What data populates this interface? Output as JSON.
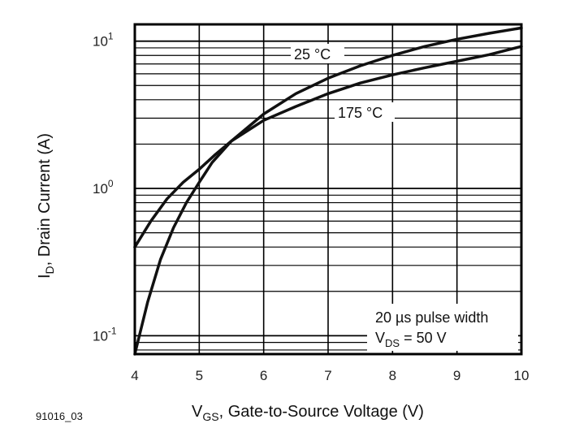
{
  "figure_id": "91016_03",
  "chart_data": {
    "type": "line",
    "x_axis": {
      "label_main": "V",
      "label_sub": "GS",
      "label_rest": ", Gate-to-Source Voltage (V)",
      "range": [
        4,
        10
      ],
      "ticks": [
        4,
        5,
        6,
        7,
        8,
        9,
        10
      ],
      "tick_labels": [
        "4",
        "5",
        "6",
        "7",
        "8",
        "9",
        "10"
      ]
    },
    "y_axis": {
      "label_main": "I",
      "label_sub": "D",
      "label_rest": ", Drain Current (A)",
      "scale": "log",
      "range": [
        0.075,
        13
      ],
      "tick_labels": [
        {
          "value": 10,
          "base": "10",
          "exp": "1"
        },
        {
          "value": 1,
          "base": "10",
          "exp": "0"
        },
        {
          "value": 0.1,
          "base": "10",
          "exp": "-1"
        }
      ]
    },
    "grid": true,
    "series": [
      {
        "name": "25 °C",
        "x": [
          4.0,
          4.2,
          4.4,
          4.6,
          4.8,
          5.0,
          5.2,
          5.5,
          6.0,
          6.5,
          7.0,
          7.5,
          8.0,
          8.5,
          9.0,
          9.5,
          10.0
        ],
        "y": [
          0.075,
          0.17,
          0.33,
          0.54,
          0.8,
          1.1,
          1.5,
          2.1,
          3.2,
          4.4,
          5.6,
          6.8,
          8.0,
          9.2,
          10.3,
          11.3,
          12.3
        ]
      },
      {
        "name": "175 °C",
        "x": [
          4.0,
          4.25,
          4.5,
          4.75,
          5.0,
          5.25,
          5.5,
          6.0,
          6.5,
          7.0,
          7.5,
          8.0,
          8.5,
          9.0,
          9.5,
          10.0
        ],
        "y": [
          0.4,
          0.6,
          0.85,
          1.1,
          1.35,
          1.7,
          2.1,
          2.9,
          3.6,
          4.4,
          5.2,
          5.9,
          6.6,
          7.3,
          8.1,
          9.2
        ]
      }
    ],
    "annotations": [
      {
        "text": "25 °C"
      },
      {
        "text": "175 °C"
      }
    ],
    "note": {
      "line1": "20 µs pulse width",
      "line2_main": "V",
      "line2_sub": "DS",
      "line2_rest": " = 50 V"
    }
  }
}
